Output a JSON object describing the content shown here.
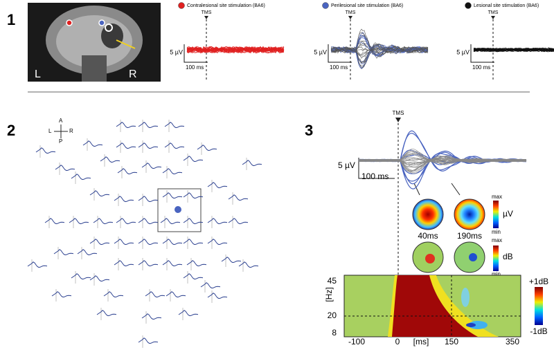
{
  "panels": [
    "1",
    "2",
    "3"
  ],
  "panel1": {
    "mri": {
      "left": "L",
      "right": "R"
    },
    "conditions": [
      {
        "name": "Contralesional site stimulation (BA6)",
        "color": "#e02020"
      },
      {
        "name": "Perilesional site stimulation (BA6)",
        "color": "#4a64c0"
      },
      {
        "name": "Lesional site stimulation (BA6)",
        "color": "#111111"
      }
    ],
    "marker": "TMS",
    "amplitude_scale": "5 µV",
    "time_scale": "100 ms"
  },
  "panel2": {
    "orientation": {
      "anterior": "A",
      "posterior": "P",
      "left": "L",
      "right": "R"
    }
  },
  "panel3": {
    "marker": "TMS",
    "amplitude_scale": "5 µV",
    "time_scale": "100 ms",
    "topomaps": [
      "40ms",
      "190ms"
    ],
    "colorbars": {
      "voltage": {
        "unit": "µV",
        "max": "max",
        "min": "min"
      },
      "power": {
        "unit": "dB",
        "max": "max",
        "min": "min"
      },
      "tf": {
        "max": "+1dB",
        "min": "-1dB"
      }
    },
    "tf": {
      "y_label": "[Hz]",
      "x_label": "[ms]",
      "yticks": [
        45,
        20,
        8
      ],
      "xticks": [
        -100,
        0,
        150,
        350
      ]
    }
  }
}
